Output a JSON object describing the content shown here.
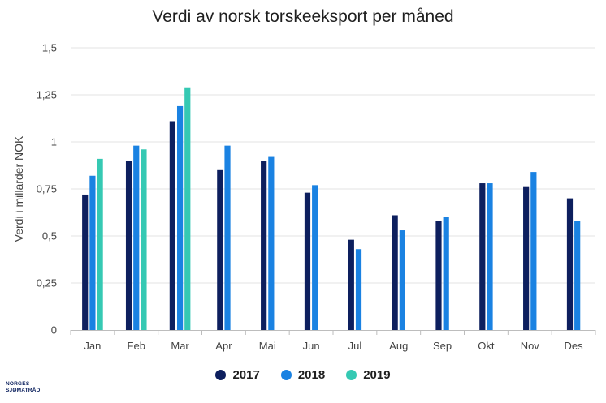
{
  "logo": {
    "line1": "NORGES",
    "line2": "SJØMATRÅD"
  },
  "chart_data": {
    "type": "bar",
    "title": "Verdi av norsk torskeeksport per måned",
    "xlabel": "",
    "ylabel": "Verdi i millarder NOK",
    "ylim": [
      0,
      1.5
    ],
    "yticks": [
      "0",
      "0,25",
      "0,5",
      "0,75",
      "1",
      "1,25",
      "1,5"
    ],
    "ytick_values": [
      0,
      0.25,
      0.5,
      0.75,
      1,
      1.25,
      1.5
    ],
    "grid": true,
    "legend_position": "bottom",
    "categories": [
      "Jan",
      "Feb",
      "Mar",
      "Apr",
      "Mai",
      "Jun",
      "Jul",
      "Aug",
      "Sep",
      "Okt",
      "Nov",
      "Des"
    ],
    "series": [
      {
        "name": "2017",
        "color": "#0d1f5e",
        "values": [
          0.72,
          0.9,
          1.11,
          0.85,
          0.9,
          0.73,
          0.48,
          0.61,
          0.58,
          0.78,
          0.76,
          0.7
        ]
      },
      {
        "name": "2018",
        "color": "#1a82e2",
        "values": [
          0.82,
          0.98,
          1.19,
          0.98,
          0.92,
          0.77,
          0.43,
          0.53,
          0.6,
          0.78,
          0.84,
          0.58
        ]
      },
      {
        "name": "2019",
        "color": "#35c9b3",
        "values": [
          0.91,
          0.96,
          1.29,
          null,
          null,
          null,
          null,
          null,
          null,
          null,
          null,
          null
        ]
      }
    ]
  }
}
